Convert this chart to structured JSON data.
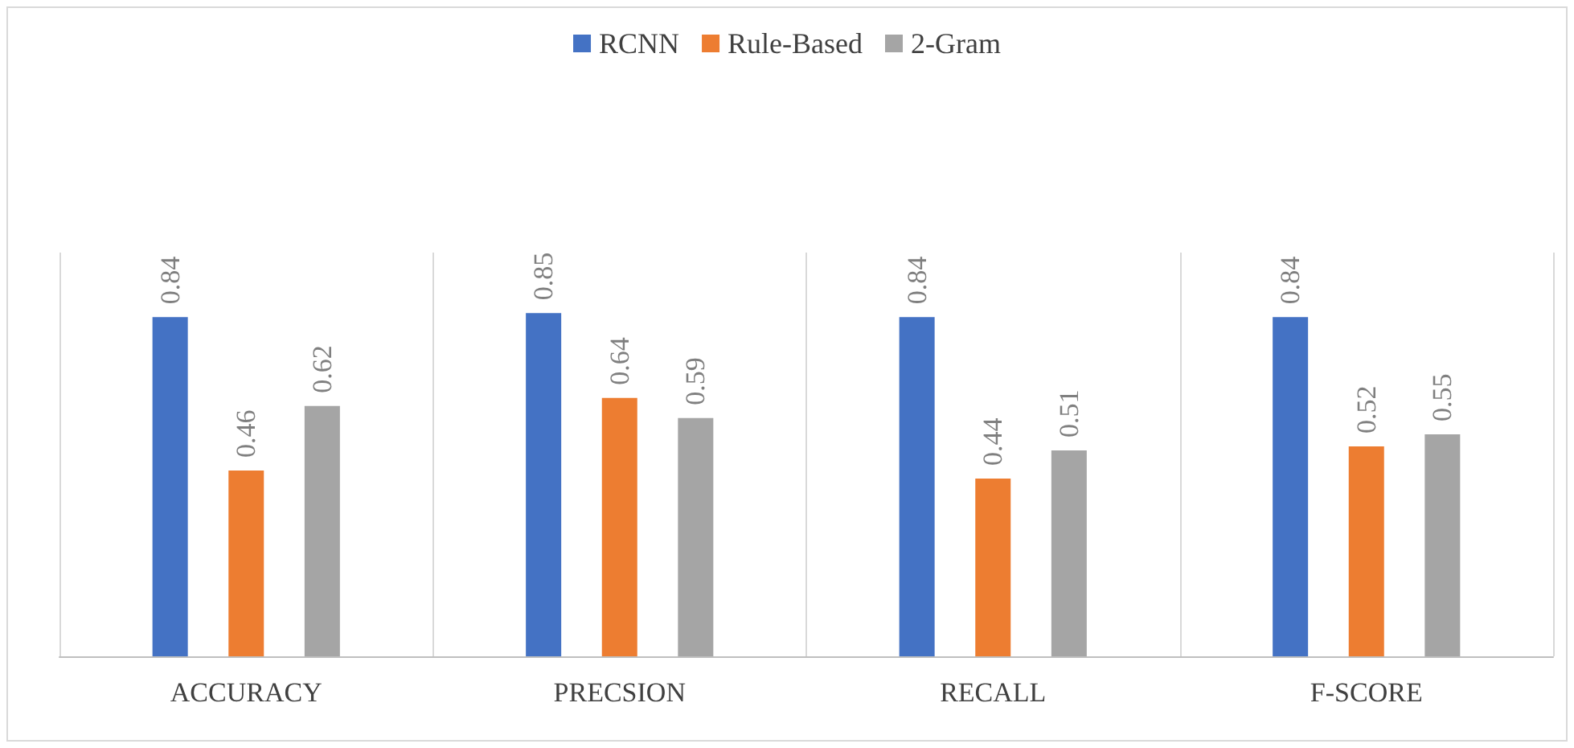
{
  "chart_data": {
    "type": "bar",
    "categories": [
      "ACCURACY",
      "PRECSION",
      "RECALL",
      "F-SCORE"
    ],
    "series": [
      {
        "name": "RCNN",
        "color": "#4472c4",
        "values": [
          0.84,
          0.85,
          0.84,
          0.84
        ]
      },
      {
        "name": "Rule-Based",
        "color": "#ed7d31",
        "values": [
          0.46,
          0.64,
          0.44,
          0.52
        ]
      },
      {
        "name": "2-Gram",
        "color": "#a5a5a5",
        "values": [
          0.62,
          0.59,
          0.51,
          0.55
        ]
      }
    ],
    "ylim": [
      0,
      1
    ],
    "data_labels": true,
    "legend": "top",
    "grid": "x",
    "tick_labels": "x"
  }
}
